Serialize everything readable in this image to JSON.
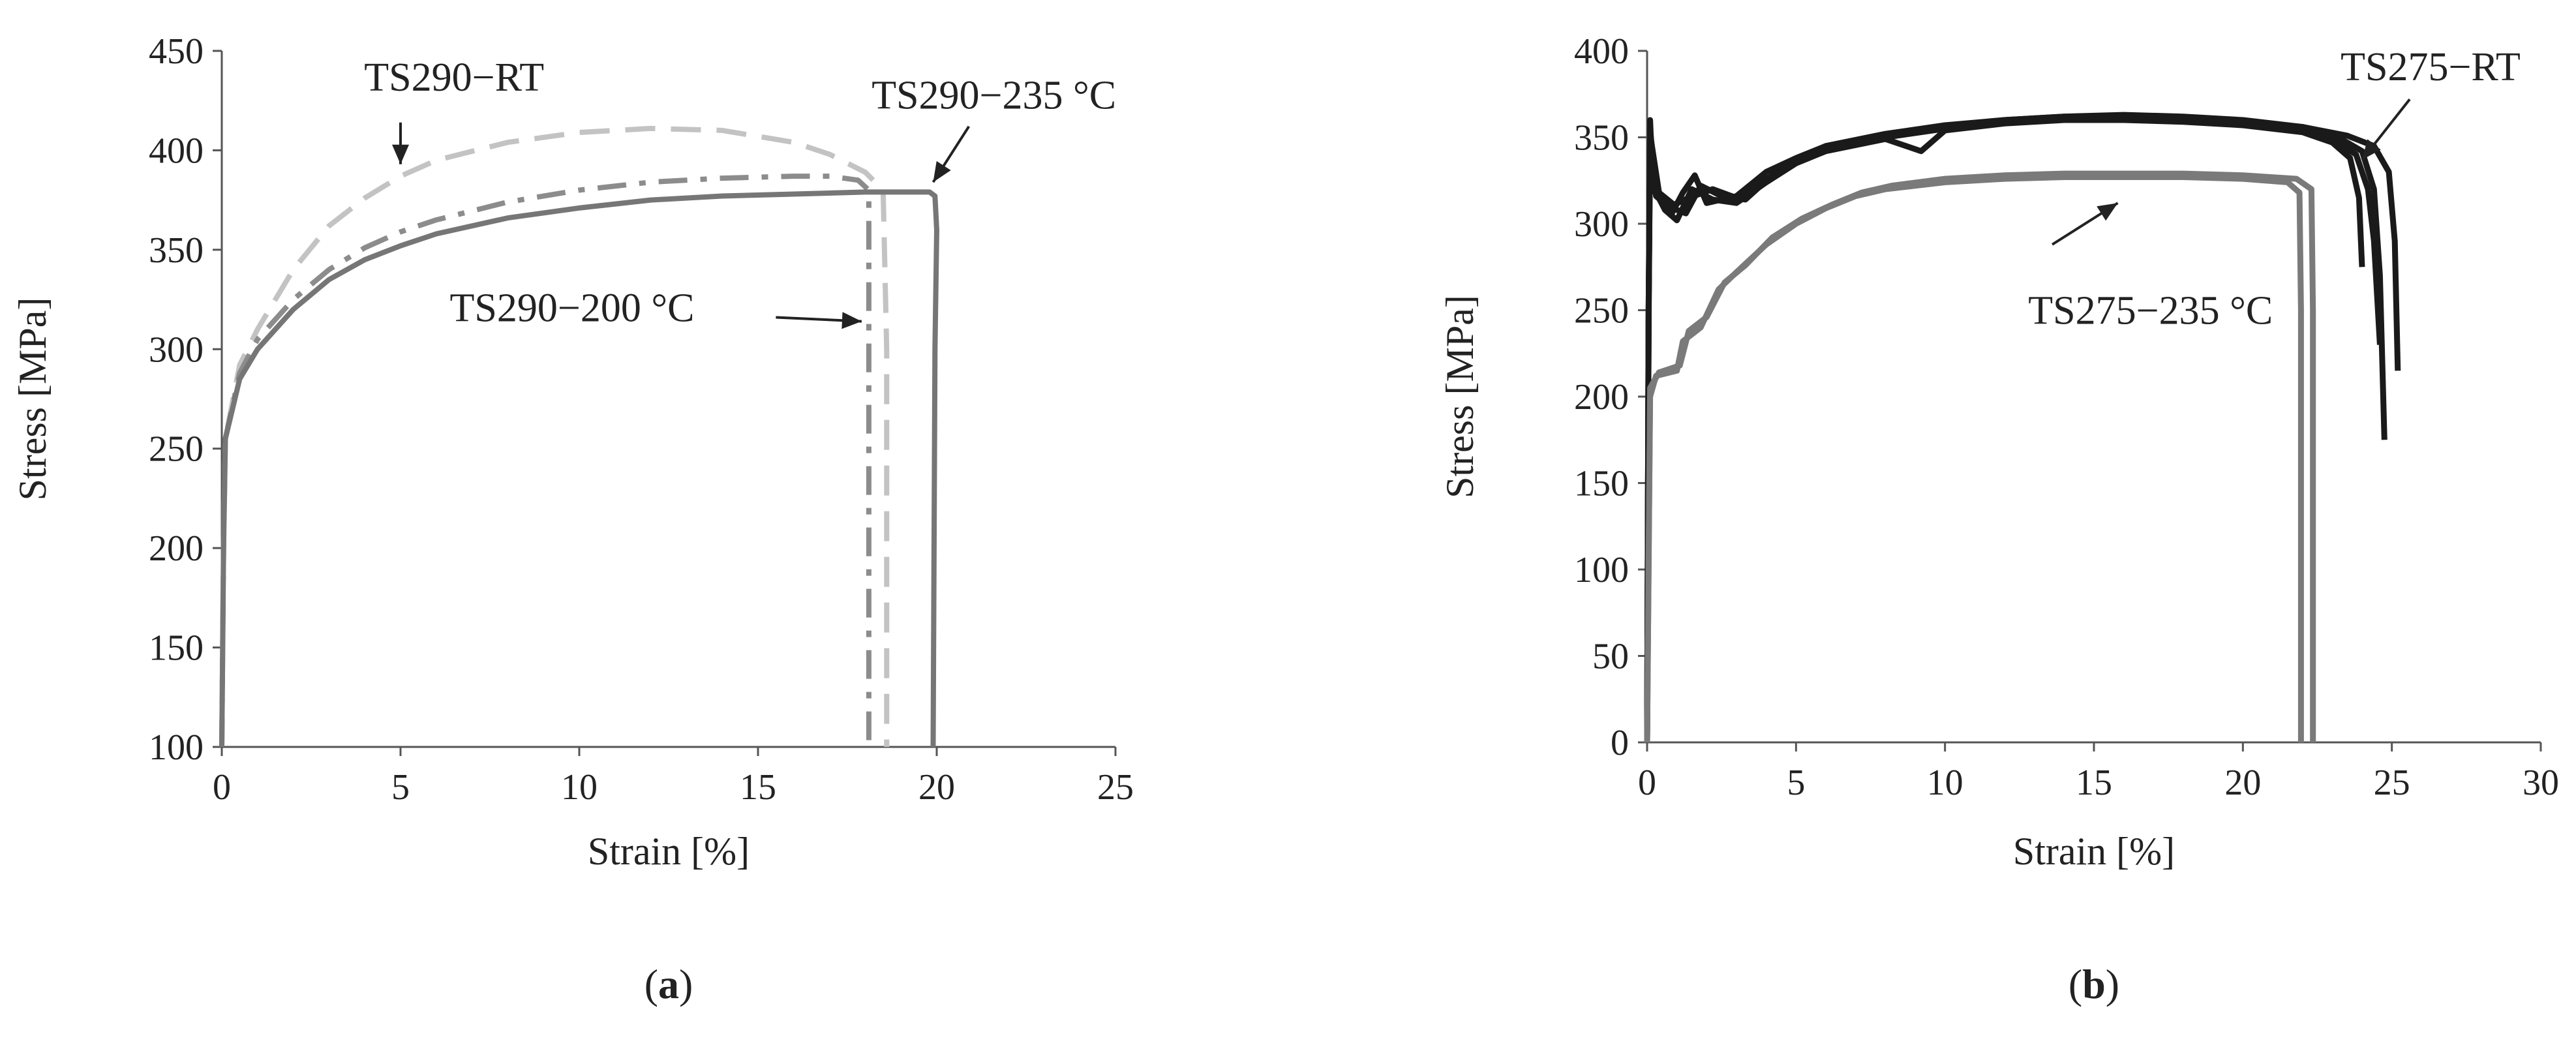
{
  "chart_data": [
    {
      "type": "line",
      "caption": "(a)",
      "caption_letter": "a",
      "xlabel": "Strain [%]",
      "ylabel": "Stress [MPa]",
      "xlim": [
        0,
        25
      ],
      "ylim": [
        100,
        450
      ],
      "xticks": [
        0,
        5,
        10,
        15,
        20,
        25
      ],
      "yticks": [
        100,
        150,
        200,
        250,
        300,
        350,
        400,
        450
      ],
      "grid": false,
      "series": [
        {
          "color": "#c3c3c3",
          "dash": "dashed",
          "points": [
            [
              0,
              100
            ],
            [
              0.05,
              200
            ],
            [
              0.1,
              255
            ],
            [
              0.5,
              292
            ],
            [
              1,
              310
            ],
            [
              2,
              340
            ],
            [
              3,
              362
            ],
            [
              4,
              376
            ],
            [
              5,
              387
            ],
            [
              6,
              395
            ],
            [
              8,
              404
            ],
            [
              10,
              409
            ],
            [
              12,
              411
            ],
            [
              14,
              410
            ],
            [
              16,
              404
            ],
            [
              17,
              398
            ],
            [
              18,
              389
            ],
            [
              18.5,
              380
            ],
            [
              18.6,
              300
            ],
            [
              18.6,
              100
            ]
          ]
        },
        {
          "color": "#8c8c8c",
          "dash": "dashdot",
          "points": [
            [
              0,
              100
            ],
            [
              0.05,
              200
            ],
            [
              0.1,
              255
            ],
            [
              0.5,
              288
            ],
            [
              1,
              305
            ],
            [
              2,
              325
            ],
            [
              3,
              340
            ],
            [
              4,
              351
            ],
            [
              5,
              359
            ],
            [
              6,
              365
            ],
            [
              8,
              374
            ],
            [
              10,
              380
            ],
            [
              12,
              384
            ],
            [
              14,
              386
            ],
            [
              16,
              387
            ],
            [
              17,
              387
            ],
            [
              17.8,
              385
            ],
            [
              18.1,
              380
            ],
            [
              18.1,
              250
            ],
            [
              18.1,
              100
            ]
          ]
        },
        {
          "color": "#767676",
          "dash": "solid",
          "points": [
            [
              0,
              100
            ],
            [
              0.05,
              200
            ],
            [
              0.1,
              255
            ],
            [
              0.5,
              285
            ],
            [
              1,
              300
            ],
            [
              2,
              320
            ],
            [
              3,
              335
            ],
            [
              4,
              345
            ],
            [
              5,
              352
            ],
            [
              6,
              358
            ],
            [
              8,
              366
            ],
            [
              10,
              371
            ],
            [
              12,
              375
            ],
            [
              14,
              377
            ],
            [
              16,
              378
            ],
            [
              18,
              379
            ],
            [
              19.8,
              379
            ],
            [
              19.95,
              377
            ],
            [
              20,
              360
            ],
            [
              19.95,
              300
            ],
            [
              19.9,
              100
            ]
          ]
        }
      ],
      "annotations": [
        {
          "text": "TS290−RT",
          "x": 6.5,
          "y": 430,
          "arrow_from": [
            5.0,
            414
          ],
          "arrow_to": [
            5.0,
            393
          ]
        },
        {
          "text": "TS290−235 °C",
          "x": 21.6,
          "y": 421,
          "arrow_from": [
            20.9,
            412
          ],
          "arrow_to": [
            19.9,
            384
          ]
        },
        {
          "text": "TS290−200 °C",
          "x": 9.8,
          "y": 314,
          "arrow_from": [
            15.5,
            316
          ],
          "arrow_to": [
            17.9,
            314
          ]
        }
      ]
    },
    {
      "type": "line",
      "caption": "(b)",
      "caption_letter": "b",
      "xlabel": "Strain [%]",
      "ylabel": "Stress [MPa]",
      "xlim": [
        0,
        30
      ],
      "ylim": [
        0,
        400
      ],
      "xticks": [
        0,
        5,
        10,
        15,
        20,
        25,
        30
      ],
      "yticks": [
        0,
        50,
        100,
        150,
        200,
        250,
        300,
        350,
        400
      ],
      "grid": false,
      "series": [
        {
          "color": "#1a1a1a",
          "dash": "solid",
          "points": [
            [
              0,
              0
            ],
            [
              0.05,
              250
            ],
            [
              0.1,
              360
            ],
            [
              0.2,
              320
            ],
            [
              0.5,
              312
            ],
            [
              0.8,
              305
            ],
            [
              1.2,
              318
            ],
            [
              1.6,
              328
            ],
            [
              2,
              312
            ],
            [
              3,
              316
            ],
            [
              4,
              330
            ],
            [
              5,
              338
            ],
            [
              6,
              345
            ],
            [
              8,
              352
            ],
            [
              10,
              357
            ],
            [
              12,
              360
            ],
            [
              14,
              362
            ],
            [
              16,
              362
            ],
            [
              18,
              361
            ],
            [
              20,
              359
            ],
            [
              22,
              355
            ],
            [
              23,
              349
            ],
            [
              23.8,
              340
            ],
            [
              24.2,
              320
            ],
            [
              24.4,
              290
            ],
            [
              24.6,
              230
            ]
          ]
        },
        {
          "color": "#1a1a1a",
          "dash": "solid",
          "points": [
            [
              0,
              0
            ],
            [
              0.05,
              250
            ],
            [
              0.1,
              355
            ],
            [
              0.3,
              318
            ],
            [
              0.6,
              308
            ],
            [
              1,
              302
            ],
            [
              1.5,
              320
            ],
            [
              2.2,
              314
            ],
            [
              3,
              312
            ],
            [
              4,
              324
            ],
            [
              5,
              335
            ],
            [
              6,
              342
            ],
            [
              8,
              349
            ],
            [
              9.2,
              342
            ],
            [
              10,
              354
            ],
            [
              12,
              358
            ],
            [
              14,
              360
            ],
            [
              16,
              360
            ],
            [
              18,
              359
            ],
            [
              20,
              357
            ],
            [
              22,
              353
            ],
            [
              23,
              347
            ],
            [
              23.6,
              338
            ],
            [
              23.9,
              315
            ],
            [
              24,
              275
            ]
          ]
        },
        {
          "color": "#1a1a1a",
          "dash": "solid",
          "points": [
            [
              0,
              0
            ],
            [
              0.05,
              240
            ],
            [
              0.1,
              350
            ],
            [
              0.3,
              316
            ],
            [
              0.7,
              310
            ],
            [
              1.3,
              306
            ],
            [
              1.8,
              322
            ],
            [
              2.5,
              316
            ],
            [
              3.3,
              314
            ],
            [
              4.2,
              328
            ],
            [
              5,
              337
            ],
            [
              6,
              344
            ],
            [
              8,
              351
            ],
            [
              10,
              356
            ],
            [
              12,
              360
            ],
            [
              14,
              362
            ],
            [
              16,
              363
            ],
            [
              18,
              362
            ],
            [
              20,
              360
            ],
            [
              22,
              356
            ],
            [
              23.2,
              350
            ],
            [
              24,
              342
            ],
            [
              24.4,
              320
            ],
            [
              24.6,
              270
            ],
            [
              24.75,
              175
            ]
          ]
        },
        {
          "color": "#1a1a1a",
          "dash": "solid",
          "points": [
            [
              0,
              0
            ],
            [
              0.05,
              245
            ],
            [
              0.1,
              352
            ],
            [
              0.4,
              318
            ],
            [
              0.9,
              311
            ],
            [
              1.4,
              315
            ],
            [
              2.2,
              320
            ],
            [
              3,
              315
            ],
            [
              4,
              326
            ],
            [
              5,
              336
            ],
            [
              6,
              343
            ],
            [
              8,
              350
            ],
            [
              10,
              355
            ],
            [
              12,
              359
            ],
            [
              14,
              361
            ],
            [
              16,
              362
            ],
            [
              18,
              361
            ],
            [
              20,
              359
            ],
            [
              22,
              356
            ],
            [
              23.5,
              351
            ],
            [
              24.4,
              345
            ],
            [
              24.9,
              330
            ],
            [
              25.1,
              290
            ],
            [
              25.2,
              215
            ]
          ]
        },
        {
          "color": "#7a7a7a",
          "dash": "solid",
          "points": [
            [
              0,
              0
            ],
            [
              0.1,
              200
            ],
            [
              0.3,
              212
            ],
            [
              1,
              215
            ],
            [
              1.2,
              232
            ],
            [
              1.8,
              240
            ],
            [
              2.4,
              262
            ],
            [
              3,
              272
            ],
            [
              4,
              288
            ],
            [
              5,
              300
            ],
            [
              6,
              309
            ],
            [
              7,
              316
            ],
            [
              8,
              320
            ],
            [
              10,
              324
            ],
            [
              12,
              326
            ],
            [
              14,
              327
            ],
            [
              16,
              327
            ],
            [
              18,
              327
            ],
            [
              20,
              326
            ],
            [
              21.5,
              324
            ],
            [
              21.9,
              318
            ],
            [
              21.95,
              250
            ],
            [
              21.95,
              0
            ]
          ]
        },
        {
          "color": "#7a7a7a",
          "dash": "solid",
          "points": [
            [
              0,
              0
            ],
            [
              0.1,
              205
            ],
            [
              0.4,
              214
            ],
            [
              1.1,
              218
            ],
            [
              1.4,
              238
            ],
            [
              2,
              246
            ],
            [
              2.6,
              266
            ],
            [
              3.3,
              276
            ],
            [
              4.2,
              292
            ],
            [
              5.2,
              303
            ],
            [
              6.2,
              311
            ],
            [
              7.2,
              318
            ],
            [
              8.2,
              322
            ],
            [
              10,
              326
            ],
            [
              12,
              328
            ],
            [
              14,
              329
            ],
            [
              16,
              329
            ],
            [
              18,
              329
            ],
            [
              20,
              328
            ],
            [
              21.8,
              326
            ],
            [
              22.3,
              320
            ],
            [
              22.35,
              250
            ],
            [
              22.35,
              0
            ]
          ]
        }
      ],
      "annotations": [
        {
          "text": "TS275−RT",
          "x": 26.3,
          "y": 383,
          "arrow_from": [
            25.6,
            372
          ],
          "arrow_to": [
            24.0,
            337
          ]
        },
        {
          "text": "TS275−235 °C",
          "x": 16.9,
          "y": 242,
          "arrow_from": [
            13.6,
            288
          ],
          "arrow_to": [
            15.8,
            312
          ]
        }
      ]
    }
  ]
}
